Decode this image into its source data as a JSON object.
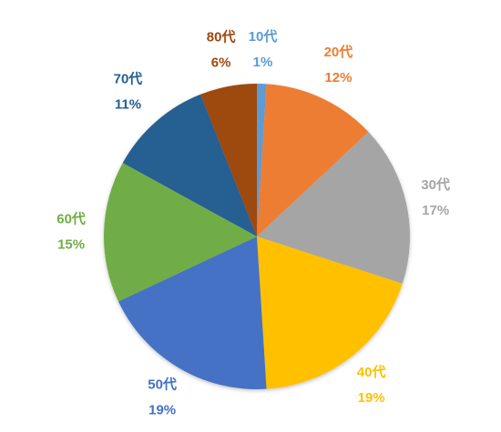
{
  "chart_data": {
    "type": "pie",
    "title": "",
    "start_angle_deg": 0,
    "direction": "clockwise",
    "legend": "none",
    "categories": [
      "10代",
      "20代",
      "30代",
      "40代",
      "50代",
      "60代",
      "70代",
      "80代"
    ],
    "values": [
      1,
      12,
      17,
      19,
      19,
      15,
      11,
      6
    ],
    "labels": [
      "1%",
      "12%",
      "17%",
      "19%",
      "19%",
      "15%",
      "11%",
      "6%"
    ],
    "colors": [
      "#5B9BD5",
      "#ED7D31",
      "#A5A5A5",
      "#FFC000",
      "#4472C4",
      "#70AD47",
      "#255E91",
      "#9E480E"
    ]
  }
}
